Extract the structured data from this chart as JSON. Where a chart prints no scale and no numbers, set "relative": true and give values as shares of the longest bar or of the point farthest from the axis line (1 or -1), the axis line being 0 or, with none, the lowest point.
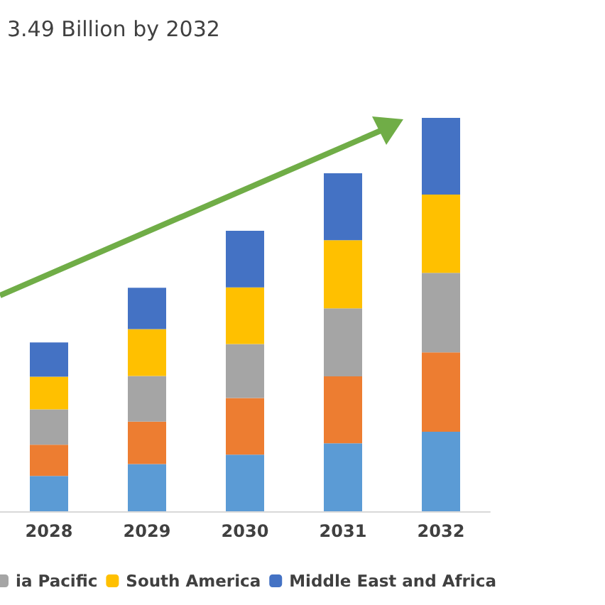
{
  "chart_data": {
    "type": "bar",
    "title": "3.49 Billion by 2032",
    "categories": [
      "2028",
      "2029",
      "2030",
      "2031",
      "2032"
    ],
    "stacked": true,
    "relative": true,
    "legend": "bottom",
    "series": [
      {
        "color": "#5b9bd5",
        "values": [
          0.09,
          0.12,
          0.144,
          0.173,
          0.202
        ]
      },
      {
        "color": "#ed7d31",
        "values": [
          0.079,
          0.108,
          0.144,
          0.17,
          0.202
        ]
      },
      {
        "name": "ia Pacific",
        "color": "#a5a5a5",
        "values": [
          0.09,
          0.116,
          0.137,
          0.173,
          0.202
        ]
      },
      {
        "name": "South America",
        "color": "#ffc000",
        "values": [
          0.083,
          0.119,
          0.144,
          0.173,
          0.199
        ]
      },
      {
        "name": "Middle East and Africa",
        "color": "#4472c4",
        "values": [
          0.087,
          0.105,
          0.144,
          0.17,
          0.195
        ]
      }
    ]
  }
}
